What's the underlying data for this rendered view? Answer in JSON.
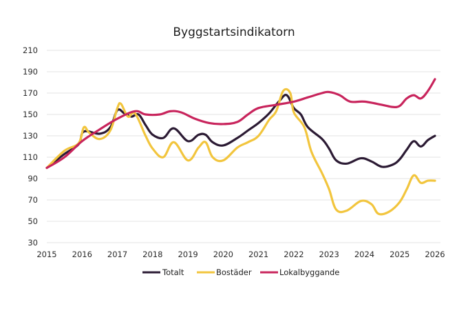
{
  "chart_data": {
    "type": "line",
    "title": "Byggstartsindikatorn",
    "xlabel": "",
    "ylabel": "",
    "xlim": [
      2015,
      2026
    ],
    "ylim": [
      30,
      210
    ],
    "x_ticks": [
      "2015",
      "2016",
      "2017",
      "2018",
      "2019",
      "2020",
      "2021",
      "2022",
      "2023",
      "2024",
      "2025",
      "2026"
    ],
    "y_ticks": [
      "210",
      "190",
      "170",
      "150",
      "130",
      "110",
      "90",
      "70",
      "50",
      "30"
    ],
    "y_tick_values": [
      210,
      190,
      170,
      150,
      130,
      110,
      90,
      70,
      50,
      30
    ],
    "x_tick_values": [
      2015,
      2016,
      2017,
      2018,
      2019,
      2020,
      2021,
      2022,
      2023,
      2024,
      2025,
      2026
    ],
    "grid": true,
    "legend_position": "bottom",
    "series": [
      {
        "name": "Totalt",
        "color": "#2b1a33",
        "x": [
          2015.0,
          2015.5,
          2015.9,
          2016.05,
          2016.5,
          2016.8,
          2017.0,
          2017.2,
          2017.4,
          2017.6,
          2017.8,
          2018.0,
          2018.3,
          2018.6,
          2019.0,
          2019.3,
          2019.5,
          2019.7,
          2020.0,
          2020.4,
          2020.7,
          2021.0,
          2021.3,
          2021.6,
          2021.8,
          2022.0,
          2022.2,
          2022.4,
          2022.8,
          2023.0,
          2023.2,
          2023.5,
          2023.9,
          2024.2,
          2024.5,
          2024.8,
          2025.0,
          2025.2,
          2025.4,
          2025.6,
          2025.8,
          2026.0
        ],
        "values": [
          100,
          113,
          122,
          134,
          132,
          138,
          154,
          151,
          148,
          150,
          140,
          131,
          128,
          137,
          125,
          131,
          131,
          124,
          121,
          128,
          135,
          142,
          151,
          163,
          168,
          156,
          150,
          138,
          127,
          118,
          107,
          104,
          109,
          106,
          101,
          103,
          108,
          117,
          125,
          120,
          126,
          130
        ]
      },
      {
        "name": "Bostäder",
        "color": "#f2c53d",
        "x": [
          2015.0,
          2015.5,
          2015.9,
          2016.05,
          2016.2,
          2016.5,
          2016.8,
          2017.0,
          2017.1,
          2017.3,
          2017.5,
          2017.8,
          2018.0,
          2018.3,
          2018.6,
          2019.0,
          2019.3,
          2019.5,
          2019.7,
          2020.0,
          2020.4,
          2020.7,
          2021.0,
          2021.3,
          2021.5,
          2021.7,
          2021.9,
          2022.0,
          2022.3,
          2022.5,
          2022.8,
          2023.0,
          2023.2,
          2023.5,
          2023.9,
          2024.2,
          2024.4,
          2024.7,
          2025.0,
          2025.2,
          2025.4,
          2025.6,
          2025.8,
          2026.0
        ],
        "values": [
          100,
          116,
          123,
          138,
          133,
          127,
          135,
          156,
          160,
          148,
          151,
          130,
          118,
          110,
          124,
          107,
          119,
          124,
          110,
          107,
          119,
          124,
          130,
          145,
          153,
          172,
          170,
          152,
          138,
          115,
          95,
          80,
          61,
          60,
          69,
          66,
          57,
          59,
          68,
          80,
          93,
          86,
          88,
          88
        ]
      },
      {
        "name": "Lokalbyggande",
        "color": "#c8245c",
        "x": [
          2015.0,
          2015.5,
          2016.0,
          2016.5,
          2017.0,
          2017.5,
          2017.8,
          2018.2,
          2018.5,
          2018.8,
          2019.2,
          2019.6,
          2020.0,
          2020.4,
          2020.7,
          2021.0,
          2021.5,
          2022.0,
          2022.4,
          2022.8,
          2023.0,
          2023.3,
          2023.6,
          2024.0,
          2024.5,
          2024.8,
          2025.0,
          2025.2,
          2025.4,
          2025.6,
          2025.8,
          2026.0
        ],
        "values": [
          100,
          110,
          125,
          136,
          146,
          153,
          150,
          150,
          153,
          152,
          146,
          142,
          141,
          143,
          150,
          156,
          159,
          162,
          166,
          170,
          171,
          168,
          162,
          162,
          159,
          157,
          158,
          165,
          168,
          165,
          172,
          183
        ]
      }
    ]
  }
}
